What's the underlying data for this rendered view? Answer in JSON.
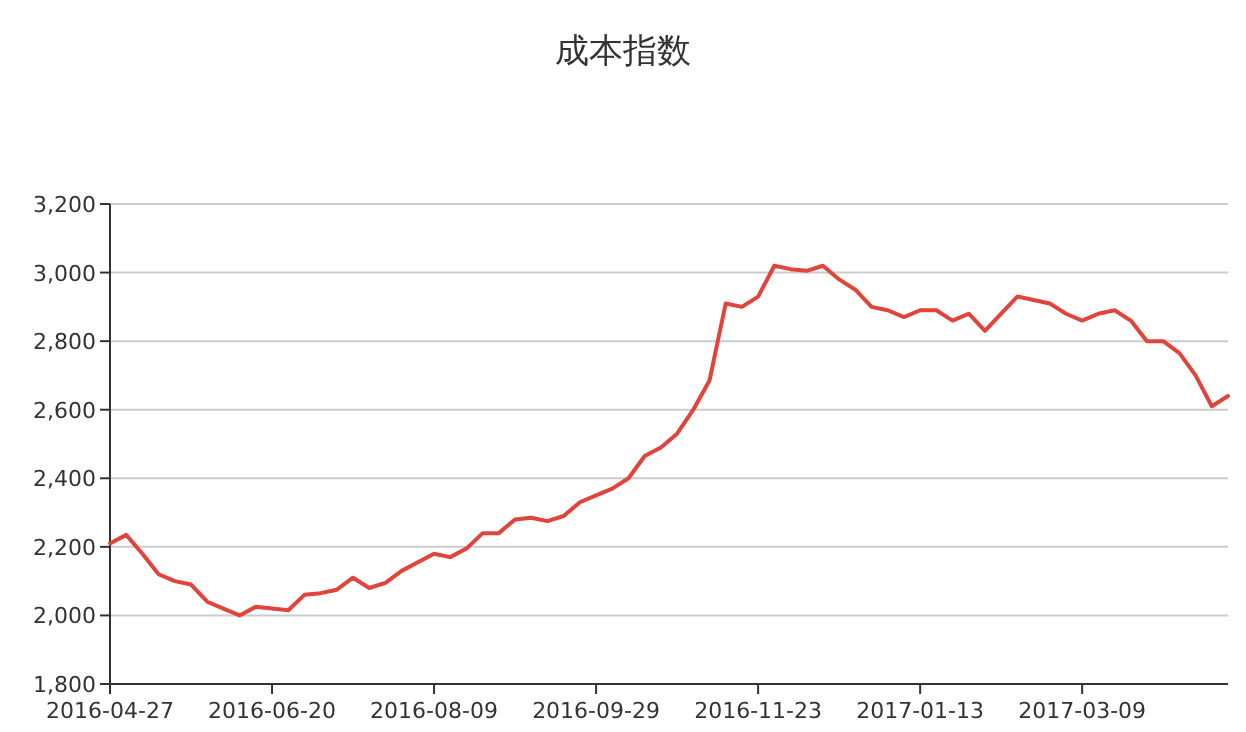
{
  "chart_data": {
    "type": "line",
    "title": "成本指数",
    "categories": [
      "2016-04-27",
      null,
      null,
      null,
      null,
      null,
      null,
      null,
      null,
      null,
      "2016-06-20",
      null,
      null,
      null,
      null,
      null,
      null,
      null,
      null,
      null,
      "2016-08-09",
      null,
      null,
      null,
      null,
      null,
      null,
      null,
      null,
      null,
      "2016-09-29",
      null,
      null,
      null,
      null,
      null,
      null,
      null,
      null,
      null,
      "2016-11-23",
      null,
      null,
      null,
      null,
      null,
      null,
      null,
      null,
      null,
      "2017-01-13",
      null,
      null,
      null,
      null,
      null,
      null,
      null,
      null,
      null,
      "2017-03-09",
      null,
      null,
      null,
      null,
      null,
      null,
      null,
      null,
      null
    ],
    "series": [
      {
        "color": "#e0443a",
        "values": [
          2210,
          2235,
          2180,
          2120,
          2100,
          2090,
          2040,
          2020,
          2000,
          2025,
          2020,
          2015,
          2060,
          2065,
          2075,
          2110,
          2080,
          2095,
          2130,
          2155,
          2180,
          2170,
          2195,
          2240,
          2240,
          2280,
          2285,
          2275,
          2290,
          2330,
          2350,
          2370,
          2400,
          2465,
          2490,
          2530,
          2600,
          2685,
          2910,
          2900,
          2930,
          3020,
          3010,
          3005,
          3020,
          2980,
          2950,
          2900,
          2890,
          2870,
          2890,
          2890,
          2860,
          2880,
          2830,
          2880,
          2930,
          2920,
          2910,
          2880,
          2860,
          2880,
          2890,
          2860,
          2800,
          2800,
          2765,
          2700,
          2610,
          2640
        ]
      }
    ],
    "ylim": [
      1800,
      3200
    ],
    "yticks": [
      {
        "value": 1800,
        "label": "1,800"
      },
      {
        "value": 2000,
        "label": "2,000"
      },
      {
        "value": 2200,
        "label": "2,200"
      },
      {
        "value": 2400,
        "label": "2,400"
      },
      {
        "value": 2600,
        "label": "2,600"
      },
      {
        "value": 2800,
        "label": "2,800"
      },
      {
        "value": 3000,
        "label": "3,000"
      },
      {
        "value": 3200,
        "label": "3,200"
      }
    ],
    "grid": "y"
  }
}
